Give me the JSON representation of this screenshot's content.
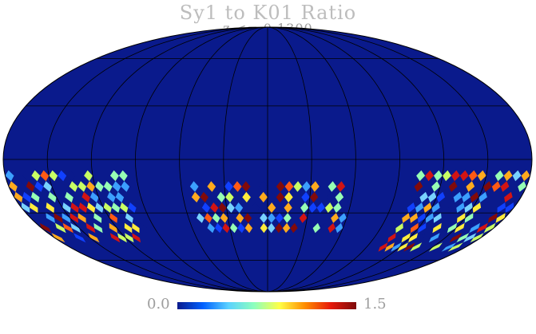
{
  "map": {
    "title": "Sy1 to K01 Ratio",
    "subtitle": "z <= 0.1300",
    "projection": "mollweide",
    "background_color": "#0a1a8c",
    "grid_color": "#000000",
    "colorbar": {
      "min_label": "0.0",
      "max_label": "1.5",
      "colormap": [
        "#0a1a8c",
        "#0060ff",
        "#5ad2ff",
        "#8cffbe",
        "#ffff46",
        "#ff8c00",
        "#e6190a",
        "#7d0a0a"
      ]
    },
    "color_levels": [
      "#0a1a8c",
      "#1040ff",
      "#3ca0ff",
      "#78d2ff",
      "#96ffb4",
      "#c8ff64",
      "#ffeb3c",
      "#ffaa1e",
      "#ff5a14",
      "#d21414",
      "#820a0a"
    ]
  }
}
